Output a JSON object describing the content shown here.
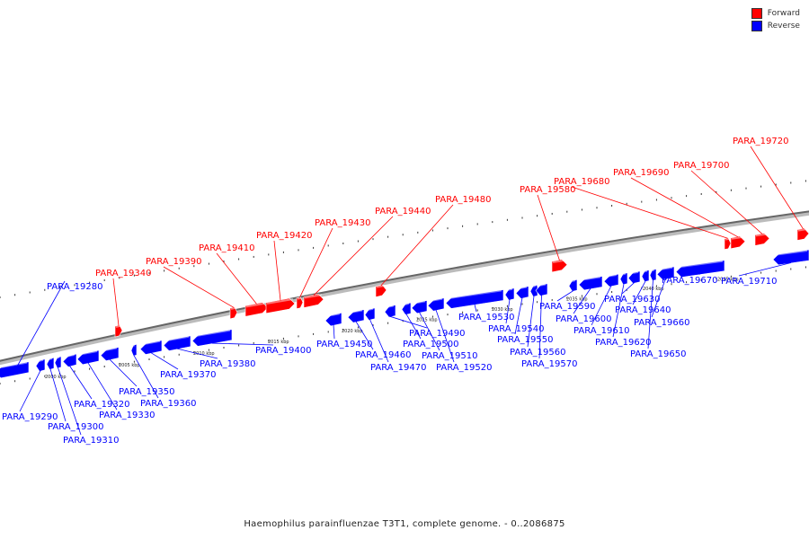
{
  "legend": {
    "forward_label": "Forward",
    "reverse_label": "Reverse",
    "forward_color": "#ff0000",
    "reverse_color": "#0000ff"
  },
  "caption": "Haemophilus parainfluenzae T3T1, complete genome. - 0..2086875",
  "scale_unit": "kbp",
  "tick_labels": [
    "2000 kbp",
    "2005 kbp",
    "2010 kbp",
    "2015 kbp",
    "2020 kbp",
    "2025 kbp",
    "2030 kbp",
    "2035 kbp",
    "2040 kbp",
    "2045 kbp"
  ],
  "genes": [
    {
      "tag": "PARA_19280",
      "strand": "reverse"
    },
    {
      "tag": "PARA_19290",
      "strand": "reverse"
    },
    {
      "tag": "PARA_19300",
      "strand": "reverse"
    },
    {
      "tag": "PARA_19310",
      "strand": "reverse"
    },
    {
      "tag": "PARA_19320",
      "strand": "reverse"
    },
    {
      "tag": "PARA_19330",
      "strand": "reverse"
    },
    {
      "tag": "PARA_19340",
      "strand": "forward"
    },
    {
      "tag": "PARA_19350",
      "strand": "reverse"
    },
    {
      "tag": "PARA_19360",
      "strand": "reverse"
    },
    {
      "tag": "PARA_19370",
      "strand": "reverse"
    },
    {
      "tag": "PARA_19380",
      "strand": "reverse"
    },
    {
      "tag": "PARA_19390",
      "strand": "forward"
    },
    {
      "tag": "PARA_19400",
      "strand": "reverse"
    },
    {
      "tag": "PARA_19410",
      "strand": "forward"
    },
    {
      "tag": "PARA_19420",
      "strand": "forward"
    },
    {
      "tag": "PARA_19430",
      "strand": "forward"
    },
    {
      "tag": "PARA_19440",
      "strand": "forward"
    },
    {
      "tag": "PARA_19450",
      "strand": "reverse"
    },
    {
      "tag": "PARA_19460",
      "strand": "reverse"
    },
    {
      "tag": "PARA_19470",
      "strand": "reverse"
    },
    {
      "tag": "PARA_19480",
      "strand": "forward"
    },
    {
      "tag": "PARA_19490",
      "strand": "reverse"
    },
    {
      "tag": "PARA_19500",
      "strand": "reverse"
    },
    {
      "tag": "PARA_19510",
      "strand": "reverse"
    },
    {
      "tag": "PARA_19520",
      "strand": "reverse"
    },
    {
      "tag": "PARA_19530",
      "strand": "reverse"
    },
    {
      "tag": "PARA_19540",
      "strand": "reverse"
    },
    {
      "tag": "PARA_19550",
      "strand": "reverse"
    },
    {
      "tag": "PARA_19560",
      "strand": "reverse"
    },
    {
      "tag": "PARA_19570",
      "strand": "reverse"
    },
    {
      "tag": "PARA_19580",
      "strand": "forward"
    },
    {
      "tag": "PARA_19590",
      "strand": "reverse"
    },
    {
      "tag": "PARA_19600",
      "strand": "reverse"
    },
    {
      "tag": "PARA_19610",
      "strand": "reverse"
    },
    {
      "tag": "PARA_19620",
      "strand": "reverse"
    },
    {
      "tag": "PARA_19630",
      "strand": "reverse"
    },
    {
      "tag": "PARA_19640",
      "strand": "reverse"
    },
    {
      "tag": "PARA_19650",
      "strand": "reverse"
    },
    {
      "tag": "PARA_19660",
      "strand": "reverse"
    },
    {
      "tag": "PARA_19670",
      "strand": "reverse"
    },
    {
      "tag": "PARA_19680",
      "strand": "forward"
    },
    {
      "tag": "PARA_19690",
      "strand": "forward"
    },
    {
      "tag": "PARA_19700",
      "strand": "forward"
    },
    {
      "tag": "PARA_19710",
      "strand": "reverse"
    },
    {
      "tag": "PARA_19720",
      "strand": "forward"
    }
  ]
}
